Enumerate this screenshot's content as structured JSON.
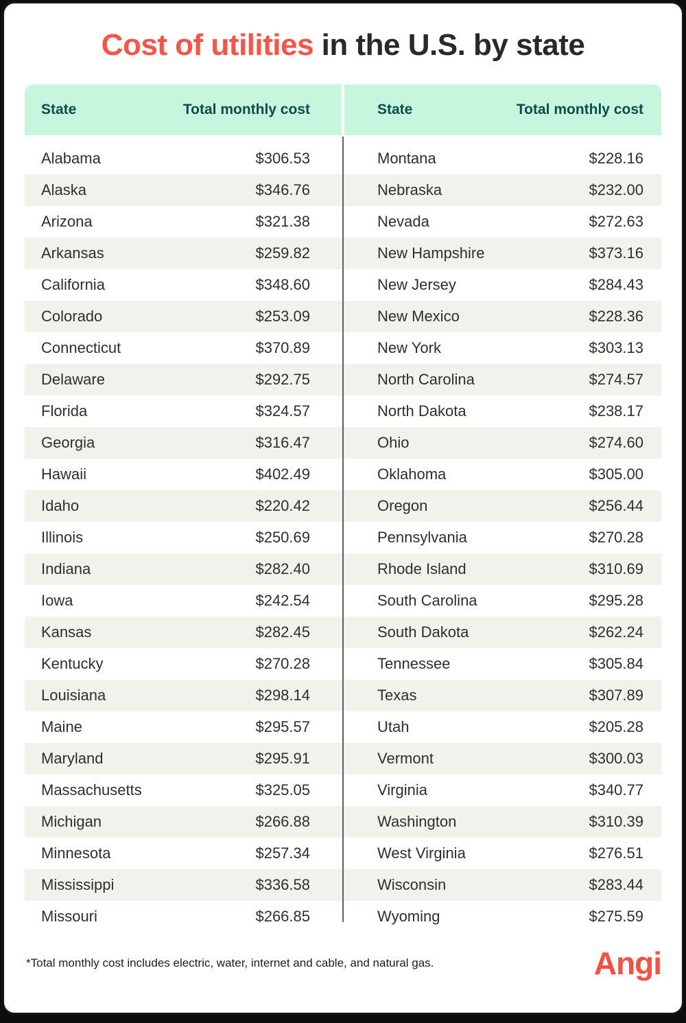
{
  "title": {
    "accent": "Cost of utilities",
    "rest": " in the U.S. by state"
  },
  "colors": {
    "accent_red": "#FC5349",
    "title_dark": "#2B2926",
    "header_bg": "#C6F6DD",
    "header_text": "#0E4C4B",
    "row_stripe": "#F2F1EB",
    "body_text": "#2F2E2B",
    "body_divider": "#606060",
    "frame_black": "#161616"
  },
  "table": {
    "column_headers": [
      "State",
      "Total monthly cost"
    ],
    "left_rows": [
      {
        "state": "Alabama",
        "cost": "$306.53"
      },
      {
        "state": "Alaska",
        "cost": "$346.76"
      },
      {
        "state": "Arizona",
        "cost": "$321.38"
      },
      {
        "state": "Arkansas",
        "cost": "$259.82"
      },
      {
        "state": "California",
        "cost": "$348.60"
      },
      {
        "state": "Colorado",
        "cost": "$253.09"
      },
      {
        "state": "Connecticut",
        "cost": "$370.89"
      },
      {
        "state": "Delaware",
        "cost": "$292.75"
      },
      {
        "state": "Florida",
        "cost": "$324.57"
      },
      {
        "state": "Georgia",
        "cost": "$316.47"
      },
      {
        "state": "Hawaii",
        "cost": "$402.49"
      },
      {
        "state": "Idaho",
        "cost": "$220.42"
      },
      {
        "state": "Illinois",
        "cost": "$250.69"
      },
      {
        "state": "Indiana",
        "cost": "$282.40"
      },
      {
        "state": "Iowa",
        "cost": "$242.54"
      },
      {
        "state": "Kansas",
        "cost": "$282.45"
      },
      {
        "state": "Kentucky",
        "cost": "$270.28"
      },
      {
        "state": "Louisiana",
        "cost": "$298.14"
      },
      {
        "state": "Maine",
        "cost": "$295.57"
      },
      {
        "state": "Maryland",
        "cost": "$295.91"
      },
      {
        "state": "Massachusetts",
        "cost": "$325.05"
      },
      {
        "state": "Michigan",
        "cost": "$266.88"
      },
      {
        "state": "Minnesota",
        "cost": "$257.34"
      },
      {
        "state": "Mississippi",
        "cost": "$336.58"
      },
      {
        "state": "Missouri",
        "cost": "$266.85"
      }
    ],
    "right_rows": [
      {
        "state": "Montana",
        "cost": "$228.16"
      },
      {
        "state": "Nebraska",
        "cost": "$232.00"
      },
      {
        "state": "Nevada",
        "cost": "$272.63"
      },
      {
        "state": "New Hampshire",
        "cost": "$373.16"
      },
      {
        "state": "New Jersey",
        "cost": "$284.43"
      },
      {
        "state": "New Mexico",
        "cost": "$228.36"
      },
      {
        "state": "New York",
        "cost": "$303.13"
      },
      {
        "state": "North Carolina",
        "cost": "$274.57"
      },
      {
        "state": "North Dakota",
        "cost": "$238.17"
      },
      {
        "state": "Ohio",
        "cost": "$274.60"
      },
      {
        "state": "Oklahoma",
        "cost": "$305.00"
      },
      {
        "state": "Oregon",
        "cost": "$256.44"
      },
      {
        "state": "Pennsylvania",
        "cost": "$270.28"
      },
      {
        "state": "Rhode Island",
        "cost": "$310.69"
      },
      {
        "state": "South Carolina",
        "cost": "$295.28"
      },
      {
        "state": "South Dakota",
        "cost": "$262.24"
      },
      {
        "state": "Tennessee",
        "cost": "$305.84"
      },
      {
        "state": "Texas",
        "cost": "$307.89"
      },
      {
        "state": "Utah",
        "cost": "$205.28"
      },
      {
        "state": "Vermont",
        "cost": "$300.03"
      },
      {
        "state": "Virginia",
        "cost": "$340.77"
      },
      {
        "state": "Washington",
        "cost": "$310.39"
      },
      {
        "state": "West Virginia",
        "cost": "$276.51"
      },
      {
        "state": "Wisconsin",
        "cost": "$283.44"
      },
      {
        "state": "Wyoming",
        "cost": "$275.59"
      }
    ]
  },
  "footnote": "*Total monthly cost includes electric, water, internet and cable, and natural gas.",
  "logo": "Angi",
  "chart_data": {
    "type": "table",
    "title": "Cost of utilities in the U.S. by state",
    "columns": [
      "State",
      "Total monthly cost"
    ],
    "categories": [
      "Alabama",
      "Alaska",
      "Arizona",
      "Arkansas",
      "California",
      "Colorado",
      "Connecticut",
      "Delaware",
      "Florida",
      "Georgia",
      "Hawaii",
      "Idaho",
      "Illinois",
      "Indiana",
      "Iowa",
      "Kansas",
      "Kentucky",
      "Louisiana",
      "Maine",
      "Maryland",
      "Massachusetts",
      "Michigan",
      "Minnesota",
      "Mississippi",
      "Missouri",
      "Montana",
      "Nebraska",
      "Nevada",
      "New Hampshire",
      "New Jersey",
      "New Mexico",
      "New York",
      "North Carolina",
      "North Dakota",
      "Ohio",
      "Oklahoma",
      "Oregon",
      "Pennsylvania",
      "Rhode Island",
      "South Carolina",
      "South Dakota",
      "Tennessee",
      "Texas",
      "Utah",
      "Vermont",
      "Virginia",
      "Washington",
      "West Virginia",
      "Wisconsin",
      "Wyoming"
    ],
    "values": [
      306.53,
      346.76,
      321.38,
      259.82,
      348.6,
      253.09,
      370.89,
      292.75,
      324.57,
      316.47,
      402.49,
      220.42,
      250.69,
      282.4,
      242.54,
      282.45,
      270.28,
      298.14,
      295.57,
      295.91,
      325.05,
      266.88,
      257.34,
      336.58,
      266.85,
      228.16,
      232.0,
      272.63,
      373.16,
      284.43,
      228.36,
      303.13,
      274.57,
      238.17,
      274.6,
      305.0,
      256.44,
      270.28,
      310.69,
      295.28,
      262.24,
      305.84,
      307.89,
      205.28,
      300.03,
      340.77,
      310.39,
      276.51,
      283.44,
      275.59
    ],
    "unit": "USD per month",
    "note": "*Total monthly cost includes electric, water, internet and cable, and natural gas."
  }
}
